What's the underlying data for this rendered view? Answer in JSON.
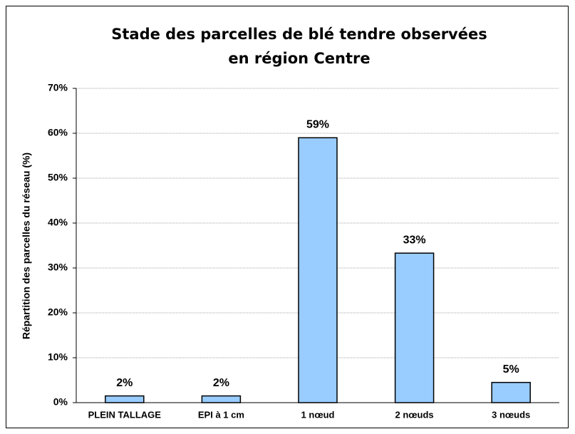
{
  "chart_data": {
    "type": "bar",
    "title": [
      "Stade des parcelles de blé tendre observées",
      "en région Centre"
    ],
    "y_label": "Répartition des parcelles du réseau (%)",
    "categories": [
      "PLEIN TALLAGE",
      "EPI à 1 cm",
      "1 nœud",
      "2 nœuds",
      "3 nœuds"
    ],
    "values": [
      1.5,
      1.5,
      59,
      33.3,
      4.5
    ],
    "value_labels": [
      "2%",
      "2%",
      "59%",
      "33%",
      "5%"
    ],
    "color": "#99ccff",
    "ylim": [
      0,
      70
    ],
    "yticks": [
      {
        "value": 0,
        "label": "0%"
      },
      {
        "value": 10,
        "label": "10%"
      },
      {
        "value": 20,
        "label": "20%"
      },
      {
        "value": 30,
        "label": "30%"
      },
      {
        "value": 40,
        "label": "40%"
      },
      {
        "value": 50,
        "label": "50%"
      },
      {
        "value": 60,
        "label": "60%"
      },
      {
        "value": 70,
        "label": "70%"
      }
    ],
    "grid": true
  }
}
